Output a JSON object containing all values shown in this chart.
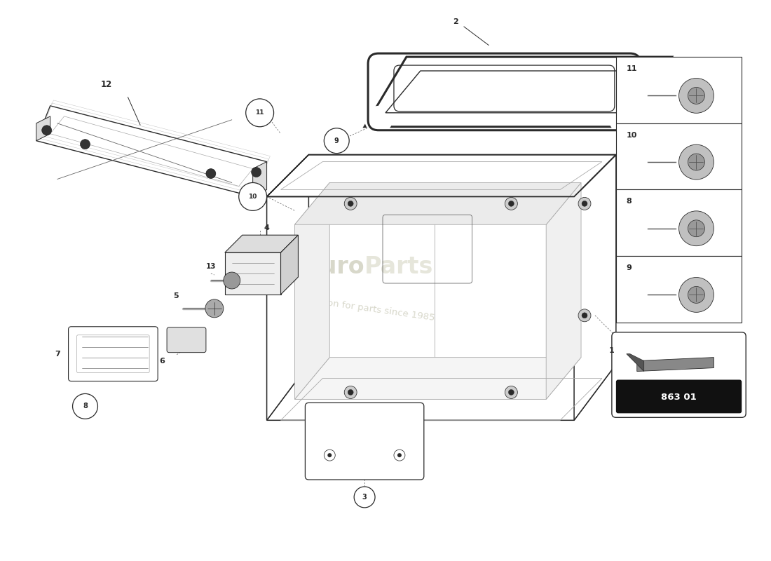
{
  "bg_color": "#ffffff",
  "dgray": "#2a2a2a",
  "mgray": "#666666",
  "lgray": "#aaaaaa",
  "vlgray": "#dddddd",
  "watermark_color": "#d0d0c8",
  "watermark_alpha": 0.6,
  "sidebar_labels": [
    "11",
    "10",
    "8",
    "9"
  ],
  "part_code": "863 01",
  "lw_main": 1.0,
  "lw_thin": 0.6,
  "lw_detail": 0.4
}
